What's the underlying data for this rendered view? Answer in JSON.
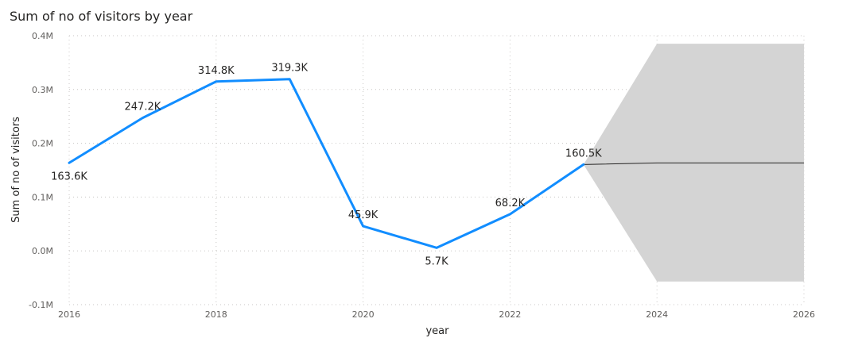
{
  "chart_data": {
    "type": "line",
    "title": "Sum of no of visitors by year",
    "xlabel": "year",
    "ylabel": "Sum of no of visitors",
    "xlim": [
      2016,
      2026
    ],
    "ylim": [
      -0.1,
      0.4
    ],
    "x_ticks": [
      "2016",
      "2018",
      "2020",
      "2022",
      "2024",
      "2026"
    ],
    "x_tick_values": [
      2016,
      2018,
      2020,
      2022,
      2024,
      2026
    ],
    "y_ticks": [
      "-0.1M",
      "0.0M",
      "0.1M",
      "0.2M",
      "0.3M",
      "0.4M"
    ],
    "y_tick_values": [
      -0.1,
      0.0,
      0.1,
      0.2,
      0.3,
      0.4
    ],
    "grid": true,
    "series": [
      {
        "x": [
          2016,
          2017,
          2018,
          2019,
          2020,
          2021,
          2022,
          2023
        ],
        "values": [
          0.1636,
          0.2472,
          0.3148,
          0.3193,
          0.0459,
          0.0057,
          0.0682,
          0.1605
        ],
        "labels": [
          "163.6K",
          "247.2K",
          "314.8K",
          "319.3K",
          "45.9K",
          "5.7K",
          "68.2K",
          "160.5K"
        ],
        "label_side": [
          "below",
          "above",
          "above",
          "above",
          "above",
          "below",
          "above",
          "above"
        ],
        "color": "#118dff"
      }
    ],
    "forecast": {
      "x": [
        2023,
        2024,
        2026
      ],
      "values": [
        0.1605,
        0.1635,
        0.1635
      ],
      "upper": [
        0.1605,
        0.385,
        0.385
      ],
      "lower": [
        0.1605,
        -0.057,
        -0.057
      ],
      "line_color": "#252423",
      "band_color": "#d4d4d4"
    }
  }
}
